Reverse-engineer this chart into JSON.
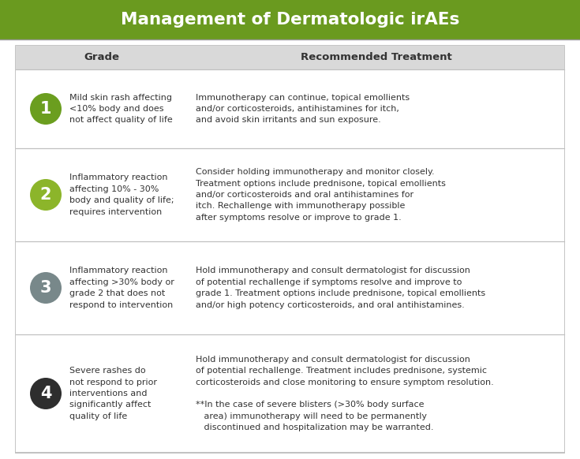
{
  "title": "Management of Dermatologic irAEs",
  "title_bg": "#6a9a1f",
  "title_color": "#ffffff",
  "header_bg": "#d9d9d9",
  "header_color": "#333333",
  "body_bg": "#ffffff",
  "outer_border_color": "#bbbbbb",
  "sep_color": "#c0c0c0",
  "text_color": "#333333",
  "col_header": [
    "Grade",
    "Recommended Treatment"
  ],
  "grades": [
    {
      "number": "1",
      "circle_color": "#6b9e1f",
      "description": "Mild skin rash affecting\n<10% body and does\nnot affect quality of life",
      "treatment": "Immunotherapy can continue, topical emollients\nand/or corticosteroids, antihistamines for itch,\nand avoid skin irritants and sun exposure."
    },
    {
      "number": "2",
      "circle_color": "#8cb52a",
      "description": "Inflammatory reaction\naffecting 10% - 30%\nbody and quality of life;\nrequires intervention",
      "treatment": "Consider holding immunotherapy and monitor closely.\nTreatment options include prednisone, topical emollients\nand/or corticosteroids and oral antihistamines for\nitch. Rechallenge with immunotherapy possible\nafter symptoms resolve or improve to grade 1."
    },
    {
      "number": "3",
      "circle_color": "#78888a",
      "description": "Inflammatory reaction\naffecting >30% body or\ngrade 2 that does not\nrespond to intervention",
      "treatment": "Hold immunotherapy and consult dermatologist for discussion\nof potential rechallenge if symptoms resolve and improve to\ngrade 1. Treatment options include prednisone, topical emollients\nand/or high potency corticosteroids, and oral antihistamines."
    },
    {
      "number": "4",
      "circle_color": "#2e2e2e",
      "description": "Severe rashes do\nnot respond to prior\ninterventions and\nsignificantly affect\nquality of life",
      "treatment": "Hold immunotherapy and consult dermatologist for discussion\nof potential rechallenge. Treatment includes prednisone, systemic\ncorticosteroids and close monitoring to ensure symptom resolution.\n\n**In the case of severe blisters (>30% body surface\n   area) immunotherapy will need to be permanently\n   discontinued and hospitalization may be warranted."
    }
  ]
}
